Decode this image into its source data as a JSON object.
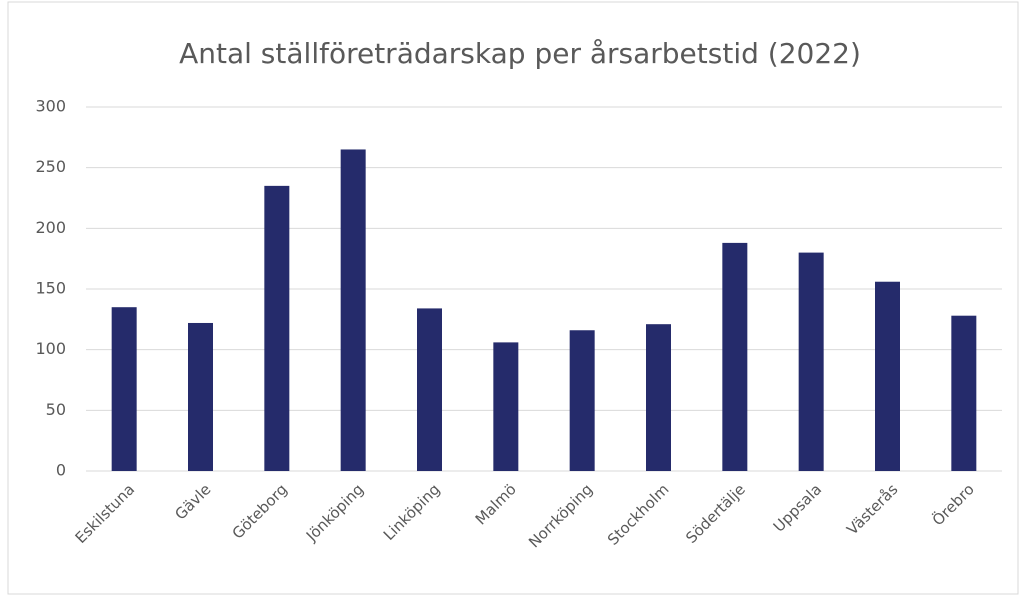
{
  "chart_data": {
    "type": "bar",
    "title": "Antal ställföreträdarskap per årsarbetstid (2022)",
    "categories": [
      "Eskilstuna",
      "Gävle",
      "Göteborg",
      "Jönköping",
      "Linköping",
      "Malmö",
      "Norrköping",
      "Stockholm",
      "Södertälje",
      "Uppsala",
      "Västerås",
      "Örebro"
    ],
    "values": [
      135,
      122,
      235,
      265,
      134,
      106,
      116,
      121,
      188,
      180,
      156,
      128
    ],
    "color": "#252b6b",
    "ylim": [
      0,
      300
    ],
    "yticks": [
      0,
      50,
      100,
      150,
      200,
      250,
      300
    ],
    "grid": true
  }
}
